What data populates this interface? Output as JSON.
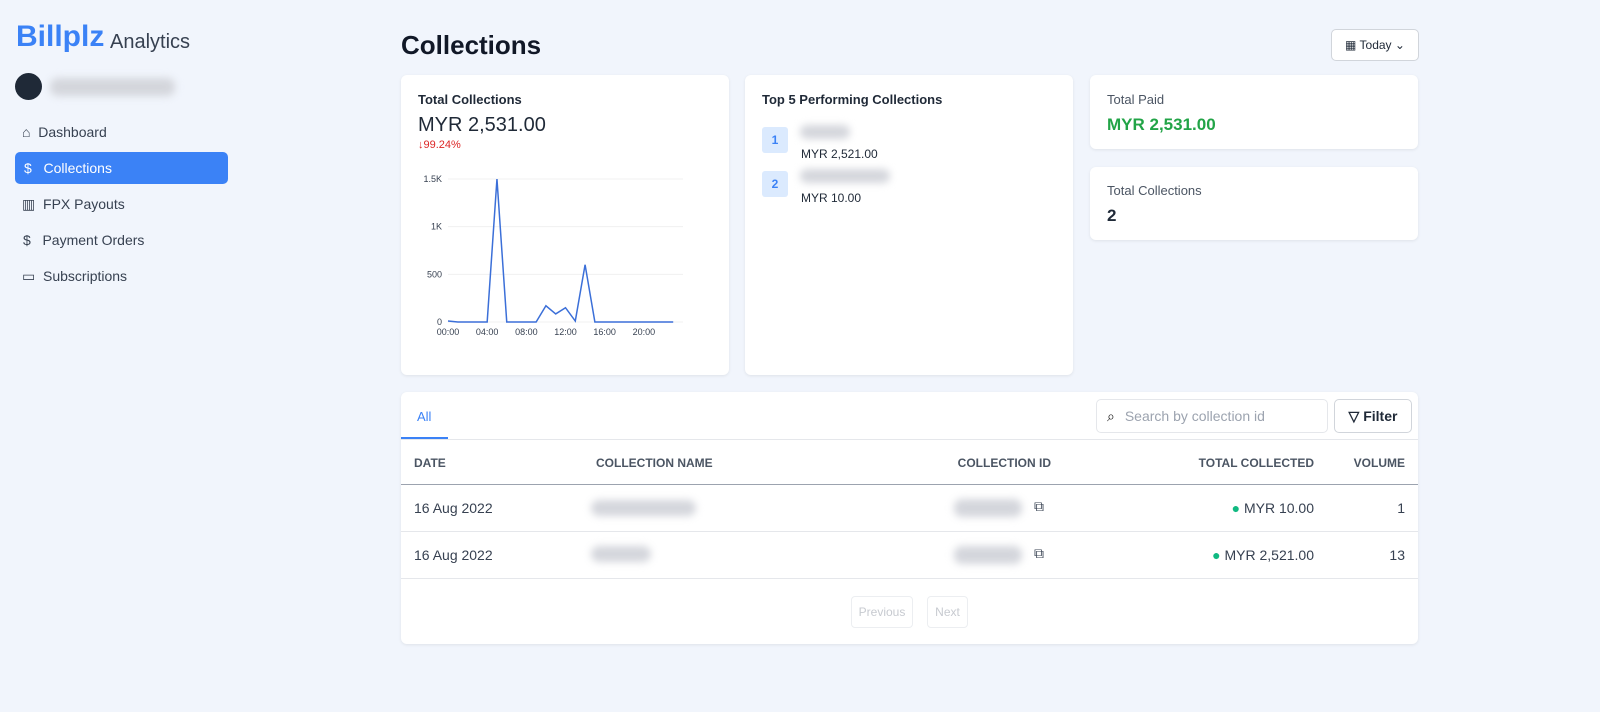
{
  "sidebar": {
    "brand": "Billplz",
    "brand_suffix": "Analytics",
    "nav": [
      "Dashboard",
      "Collections",
      "FPX Payouts",
      "Payment Orders",
      "Subscriptions"
    ]
  },
  "header": {
    "title": "Collections",
    "range_button": "Today"
  },
  "total_card": {
    "title": "Total Collections",
    "amount": "MYR 2,531.00",
    "change": "99.24%"
  },
  "chart_data": {
    "type": "line",
    "color": "#3b6fd8",
    "grid": true,
    "categories": [
      "00:00",
      null,
      null,
      null,
      "04:00",
      null,
      null,
      null,
      "08:00",
      null,
      null,
      null,
      "12:00",
      null,
      null,
      null,
      "16:00",
      null,
      null,
      null,
      "20:00",
      null,
      null,
      null
    ],
    "values": [
      10,
      0,
      0,
      0,
      0,
      1500,
      0,
      0,
      0,
      0,
      170,
      85,
      150,
      10,
      600,
      0,
      0,
      0,
      0,
      0,
      0,
      0,
      0,
      0
    ],
    "ylim": [
      0,
      1500
    ],
    "yticks": [
      0,
      500,
      {
        "value": 1000,
        "label": "1K"
      },
      {
        "value": 1500,
        "label": "1.5K"
      }
    ]
  },
  "top5": {
    "title": "Top 5 Performing Collections",
    "items": [
      {
        "rank": "1",
        "amount": "MYR 2,521.00"
      },
      {
        "rank": "2",
        "amount": "MYR 10.00"
      }
    ]
  },
  "stats": [
    {
      "label": "Total Paid",
      "value": "MYR 2,531.00"
    },
    {
      "label": "Total Collections",
      "value": "2"
    }
  ],
  "table": {
    "tab": "All",
    "search_placeholder": "Search by collection id",
    "filter": "Filter",
    "columns": [
      "DATE",
      "COLLECTION NAME",
      "COLLECTION ID",
      "TOTAL COLLECTED",
      "VOLUME"
    ],
    "rows": [
      {
        "date": "16 Aug 2022",
        "total": "MYR 10.00",
        "volume": 1
      },
      {
        "date": "16 Aug 2022",
        "total": "MYR 2,521.00",
        "volume": 13
      }
    ],
    "pagination": [
      "Previous",
      "Next"
    ]
  }
}
